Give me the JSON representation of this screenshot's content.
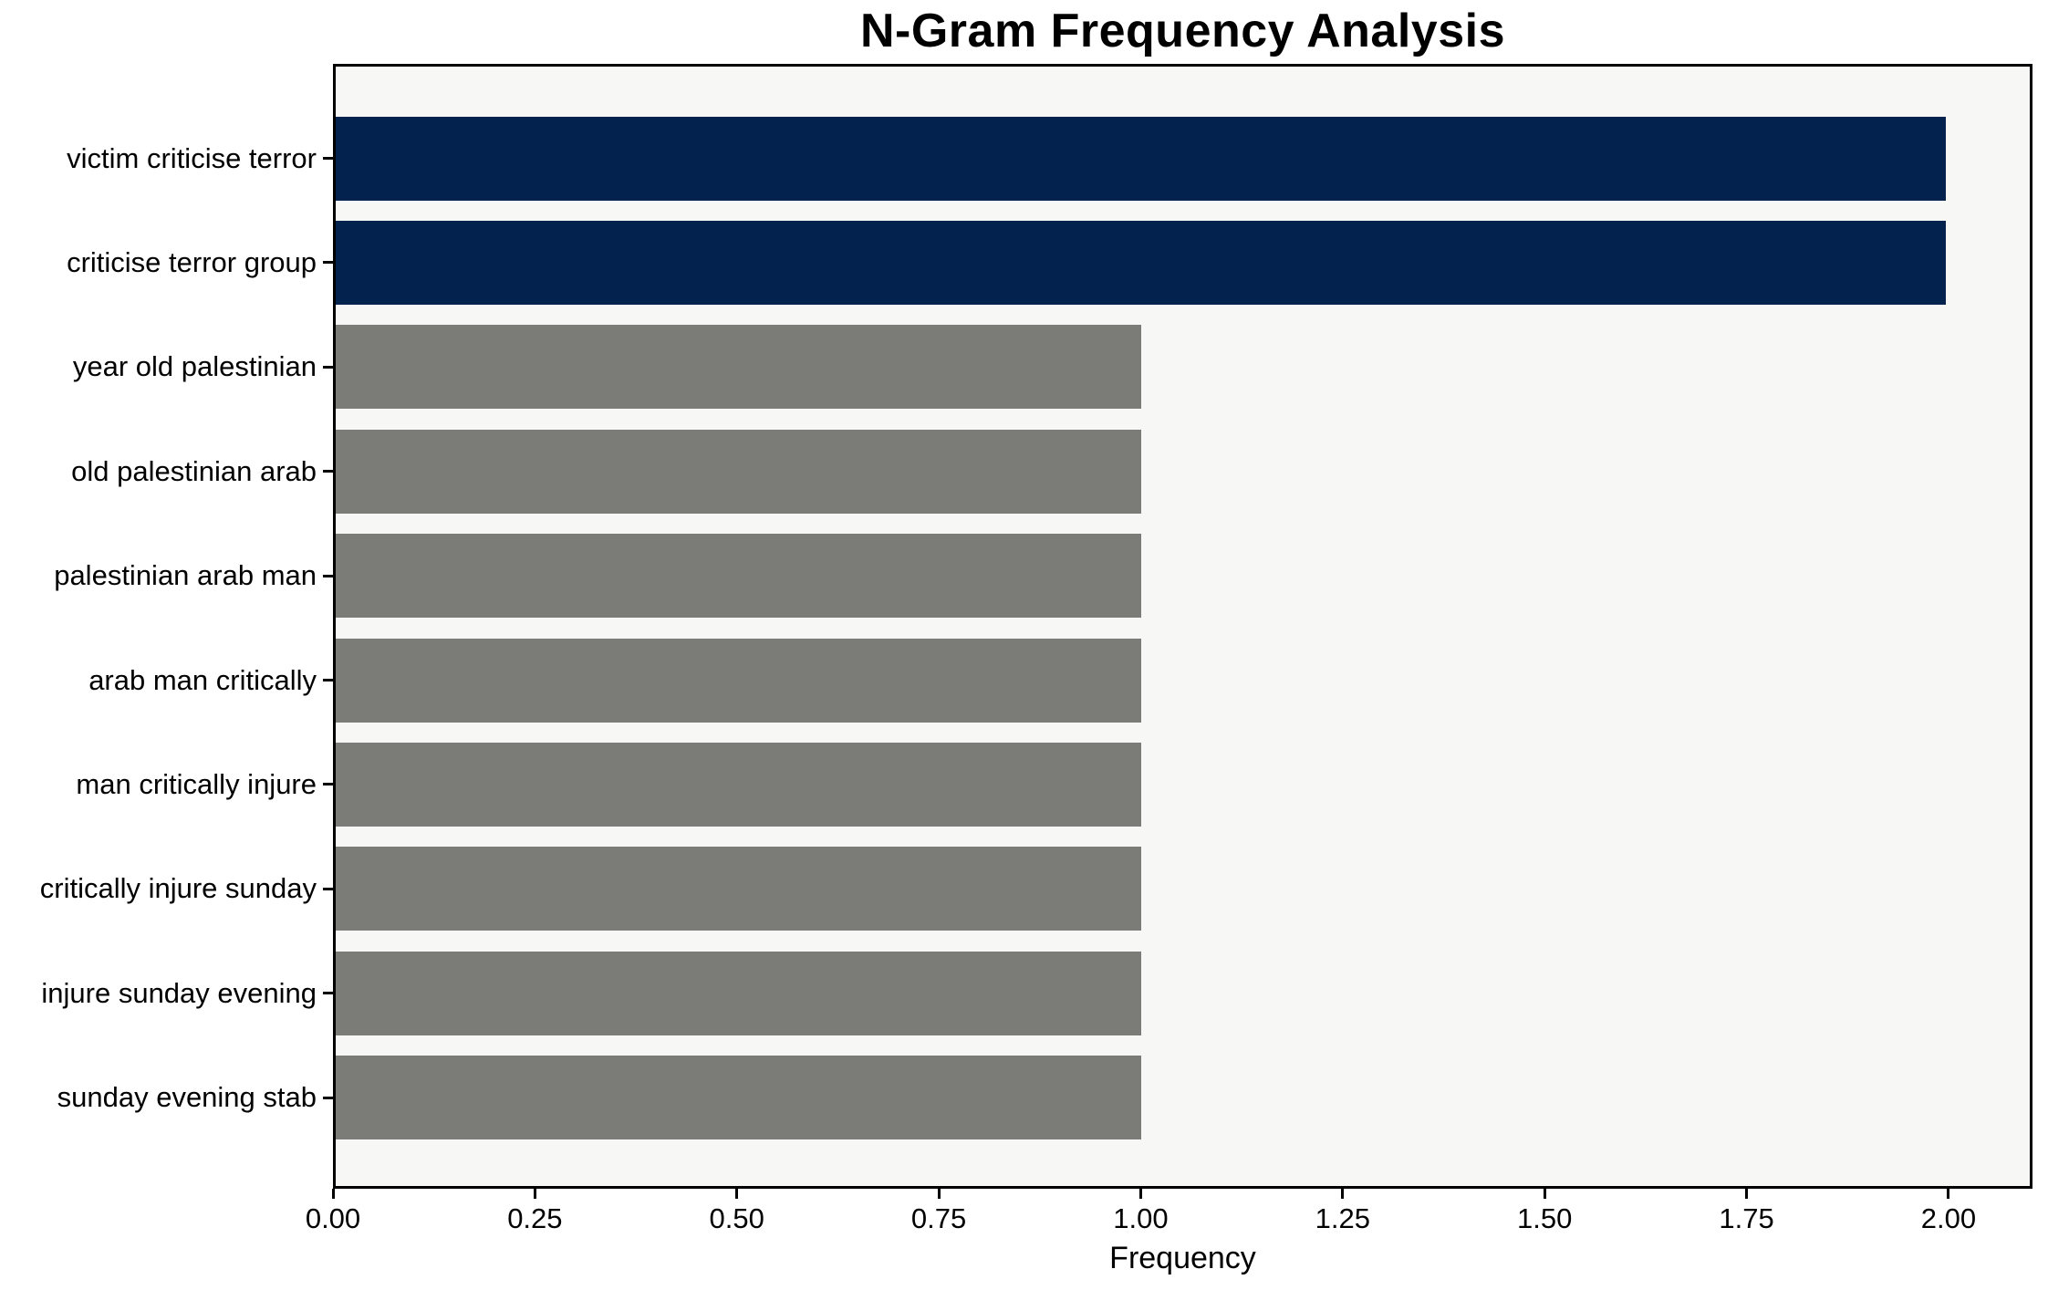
{
  "chart_data": {
    "type": "bar",
    "orientation": "horizontal",
    "title": "N-Gram Frequency Analysis",
    "xlabel": "Frequency",
    "ylabel": "",
    "categories": [
      "victim criticise terror",
      "criticise terror group",
      "year old palestinian",
      "old palestinian arab",
      "palestinian arab man",
      "arab man critically",
      "man critically injure",
      "critically injure sunday",
      "injure sunday evening",
      "sunday evening stab"
    ],
    "values": [
      2,
      2,
      1,
      1,
      1,
      1,
      1,
      1,
      1,
      1
    ],
    "bar_colors": [
      "#03234e",
      "#03234e",
      "#7b7b78",
      "#7b7b78",
      "#7b7b78",
      "#7b7b78",
      "#7b7b78",
      "#7b7b78",
      "#7b7b78",
      "#7b7b78"
    ],
    "x_tick_labels": [
      "0.00",
      "0.25",
      "0.50",
      "0.75",
      "1.00",
      "1.25",
      "1.50",
      "1.75",
      "2.00"
    ],
    "x_tick_values": [
      0,
      0.25,
      0.5,
      0.75,
      1.0,
      1.25,
      1.5,
      1.75,
      2.0
    ],
    "xlim": [
      0,
      2.104
    ],
    "grid": false,
    "legend": "none",
    "colors": {
      "high_frequency_bar": "#03234e",
      "low_frequency_bar": "#7b7b78",
      "plot_background": "#f7f7f6",
      "figure_background": "#ffffff",
      "axis": "#000000"
    }
  }
}
